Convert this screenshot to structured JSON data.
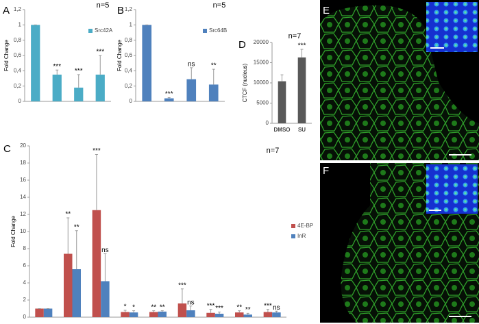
{
  "chart_data": [
    {
      "type": "bar",
      "panel_label": "A",
      "annotation": "n=5",
      "y_label": "Fold Change",
      "categories": [
        null,
        null,
        null,
        null
      ],
      "series": [
        {
          "name": "Src42A",
          "color": "#4bacc6",
          "values": [
            1,
            0.35,
            0.18,
            0.35
          ],
          "errors": [
            0,
            0.06,
            0.17,
            0.25
          ],
          "annotations": [
            null,
            "***",
            "***",
            "***"
          ]
        }
      ],
      "ylim": [
        0,
        1.2
      ],
      "yticks": [
        0,
        {
          "value": 0.2,
          "label": "0,2"
        },
        {
          "value": 0.4,
          "label": "0,4"
        },
        {
          "value": 0.6,
          "label": "0,6"
        },
        {
          "value": 0.8,
          "label": "0,8"
        },
        1,
        {
          "value": 1.2,
          "label": "1,2"
        }
      ],
      "grid": false,
      "legend": "right"
    },
    {
      "type": "bar",
      "panel_label": "B",
      "annotation": "n=5",
      "y_label": "Fold Change",
      "categories": [
        null,
        null,
        null,
        null
      ],
      "series": [
        {
          "name": "Src64B",
          "color": "#4f81bd",
          "values": [
            1,
            0.04,
            0.29,
            0.22
          ],
          "errors": [
            0,
            0.01,
            0.15,
            0.2
          ],
          "annotations": [
            null,
            "***",
            "ns",
            "**"
          ]
        }
      ],
      "ylim": [
        0,
        1.2
      ],
      "yticks": [
        0,
        {
          "value": 0.2,
          "label": "0,2"
        },
        {
          "value": 0.4,
          "label": "0,4"
        },
        {
          "value": 0.6,
          "label": "0,6"
        },
        {
          "value": 0.8,
          "label": "0,8"
        },
        1,
        {
          "value": 1.2,
          "label": "1,2"
        }
      ],
      "grid": false,
      "legend": "right"
    },
    {
      "type": "bar",
      "panel_label": "C",
      "annotation": "n=7",
      "y_label": "Fold Change",
      "categories": [
        null,
        null,
        null,
        null,
        null,
        null,
        null,
        null,
        null
      ],
      "series": [
        {
          "name": "4E-BP",
          "color": "#c0504d",
          "values": [
            1,
            7.4,
            12.5,
            0.6,
            0.6,
            1.6,
            0.5,
            0.55,
            0.6
          ],
          "errors": [
            0,
            4.2,
            6.5,
            0.2,
            0.15,
            1.7,
            0.4,
            0.2,
            0.3
          ],
          "annotations": [
            null,
            "**",
            "***",
            "*",
            "**",
            "***",
            "***",
            "**",
            "***"
          ]
        },
        {
          "name": "InR",
          "color": "#4f81bd",
          "values": [
            1,
            5.6,
            4.2,
            0.55,
            0.65,
            0.8,
            0.4,
            0.3,
            0.55
          ],
          "errors": [
            0,
            4.5,
            3.2,
            0.2,
            0.1,
            0.5,
            0.2,
            0.15,
            0.15
          ],
          "annotations": [
            null,
            "**",
            "ns",
            "*",
            "**",
            "ns",
            "***",
            "**",
            "ns"
          ]
        }
      ],
      "ylim": [
        0,
        20
      ],
      "yticks": [
        0,
        2,
        4,
        6,
        8,
        10,
        12,
        14,
        16,
        18,
        20
      ],
      "grid": false,
      "legend": "right"
    },
    {
      "type": "bar",
      "panel_label": "D",
      "annotation": "n=7",
      "y_label": "CTCF (nucleus)",
      "categories": [
        "DMSO",
        "SU"
      ],
      "series": [
        {
          "color": "#595959",
          "values": [
            10400,
            16300
          ],
          "errors": [
            1600,
            2000
          ],
          "annotations": [
            null,
            "***"
          ]
        }
      ],
      "ylim": [
        0,
        20000
      ],
      "yticks": [
        0,
        5000,
        10000,
        15000,
        20000
      ],
      "grid": false
    }
  ],
  "images": [
    {
      "label": "E"
    },
    {
      "label": "F"
    }
  ]
}
